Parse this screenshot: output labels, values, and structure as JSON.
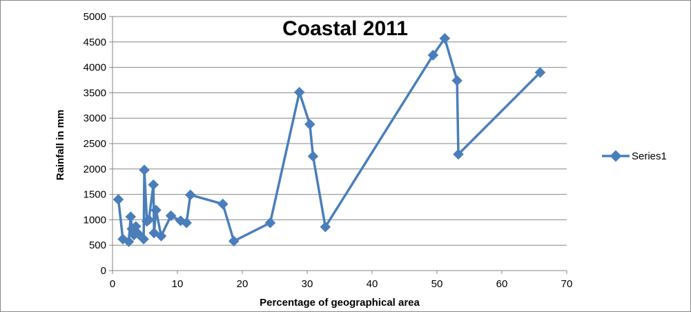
{
  "chart_data": {
    "type": "line",
    "title": "Coastal 2011",
    "xlabel": "Percentage of geographical area",
    "ylabel": "Rainfall in mm",
    "xlim": [
      0,
      70
    ],
    "ylim": [
      0,
      5000
    ],
    "xticks": [
      0,
      10,
      20,
      30,
      40,
      50,
      60,
      70
    ],
    "yticks": [
      0,
      500,
      1000,
      1500,
      2000,
      2500,
      3000,
      3500,
      4000,
      4500,
      5000
    ],
    "grid": "horizontal",
    "legend_position": "right",
    "color": "#4a7ebb",
    "series": [
      {
        "name": "Series1",
        "x": [
          0.9,
          1.6,
          2.5,
          2.8,
          3.0,
          3.3,
          3.6,
          4.0,
          4.8,
          4.9,
          5.3,
          5.6,
          6.3,
          6.4,
          6.7,
          7.5,
          9.0,
          10.5,
          11.4,
          12.0,
          17.0,
          18.7,
          24.3,
          28.8,
          30.4,
          30.9,
          32.8,
          49.4,
          51.2,
          53.1,
          53.3,
          65.9
        ],
        "y": [
          1400,
          620,
          570,
          1060,
          820,
          700,
          870,
          720,
          620,
          1980,
          970,
          1000,
          1690,
          740,
          1190,
          680,
          1080,
          980,
          940,
          1490,
          1310,
          580,
          940,
          3510,
          2880,
          2250,
          860,
          4240,
          4570,
          3740,
          2290,
          3900
        ]
      }
    ]
  }
}
